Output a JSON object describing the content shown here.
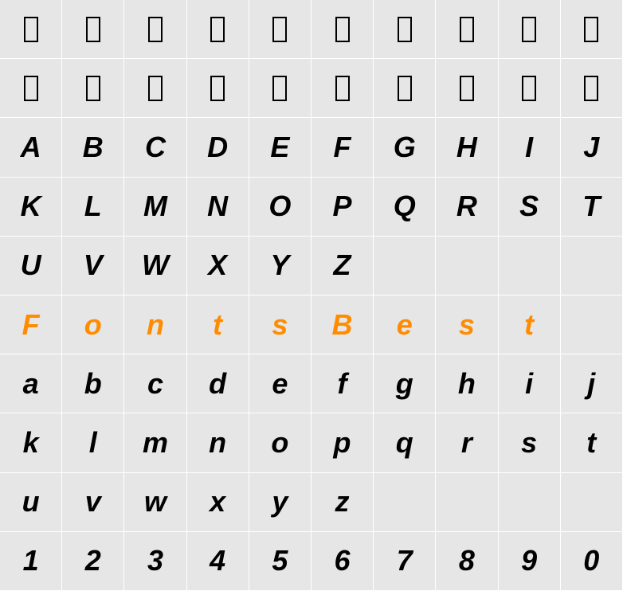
{
  "grid": {
    "columns": 10,
    "rows": 10,
    "cell_width": 78.2,
    "cell_height": 74.2,
    "background_color": "#e6e6e6",
    "border_color": "#ffffff",
    "text_color_default": "#000000",
    "text_color_highlight": "#ff8c00",
    "font_size": 36,
    "font_style": "italic",
    "font_weight": "bold",
    "box_glyph": {
      "width": 18,
      "height": 32,
      "border_width": 2.5,
      "border_color": "#000000"
    },
    "rows_data": [
      {
        "type": "box",
        "cells": [
          "□",
          "□",
          "□",
          "□",
          "□",
          "□",
          "□",
          "□",
          "□",
          "□"
        ]
      },
      {
        "type": "box",
        "cells": [
          "□",
          "□",
          "□",
          "□",
          "□",
          "□",
          "□",
          "□",
          "□",
          "□"
        ]
      },
      {
        "type": "glyph",
        "cells": [
          "A",
          "B",
          "C",
          "D",
          "E",
          "F",
          "G",
          "H",
          "I",
          "J"
        ]
      },
      {
        "type": "glyph",
        "cells": [
          "K",
          "L",
          "M",
          "N",
          "O",
          "P",
          "Q",
          "R",
          "S",
          "T"
        ]
      },
      {
        "type": "glyph",
        "cells": [
          "U",
          "V",
          "W",
          "X",
          "Y",
          "Z",
          "",
          "",
          "",
          ""
        ]
      },
      {
        "type": "glyph_highlight",
        "cells": [
          "F",
          "o",
          "n",
          "t",
          "s",
          "B",
          "e",
          "s",
          "t",
          ""
        ]
      },
      {
        "type": "glyph",
        "cells": [
          "a",
          "b",
          "c",
          "d",
          "e",
          "f",
          "g",
          "h",
          "i",
          "j"
        ]
      },
      {
        "type": "glyph",
        "cells": [
          "k",
          "l",
          "m",
          "n",
          "o",
          "p",
          "q",
          "r",
          "s",
          "t"
        ]
      },
      {
        "type": "glyph",
        "cells": [
          "u",
          "v",
          "w",
          "x",
          "y",
          "z",
          "",
          "",
          "",
          ""
        ]
      },
      {
        "type": "glyph",
        "cells": [
          "1",
          "2",
          "3",
          "4",
          "5",
          "6",
          "7",
          "8",
          "9",
          "0"
        ]
      }
    ]
  }
}
